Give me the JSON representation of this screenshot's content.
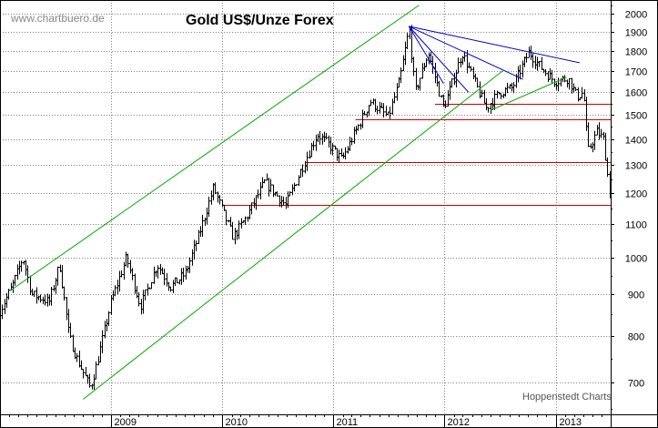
{
  "watermark": "www.chartbuero.de",
  "credit": "Hoppenstedt Charts",
  "chart_data": {
    "type": "candlestick",
    "title": "Gold US$/Unze Forex",
    "y_scale": "log",
    "ylim": [
      640,
      2080
    ],
    "y_ticks": [
      700,
      800,
      900,
      1000,
      1100,
      1200,
      1300,
      1400,
      1500,
      1600,
      1700,
      1800,
      1900,
      2000
    ],
    "x_range": [
      "2008-01-02",
      "2013-06-30"
    ],
    "x_ticks": [
      {
        "date": "2009-01-01",
        "label": "2009"
      },
      {
        "date": "2010-01-01",
        "label": "2010"
      },
      {
        "date": "2011-01-01",
        "label": "2011"
      },
      {
        "date": "2012-01-01",
        "label": "2012"
      },
      {
        "date": "2013-01-01",
        "label": "2013"
      }
    ],
    "grid": true,
    "colors": {
      "price": "#000000",
      "grid": "#808080",
      "horizontal_levels": "#cc0000",
      "channel": "#00aa00",
      "fan_lines": "#0000cc"
    },
    "price_path": [
      [
        "2008-01-02",
        860
      ],
      [
        "2008-02-10",
        920
      ],
      [
        "2008-03-17",
        1000
      ],
      [
        "2008-04-15",
        900
      ],
      [
        "2008-05-20",
        890
      ],
      [
        "2008-06-10",
        880
      ],
      [
        "2008-07-15",
        980
      ],
      [
        "2008-08-15",
        800
      ],
      [
        "2008-09-10",
        750
      ],
      [
        "2008-10-24",
        690
      ],
      [
        "2008-11-15",
        740
      ],
      [
        "2008-12-31",
        880
      ],
      [
        "2009-02-20",
        1000
      ],
      [
        "2009-04-06",
        870
      ],
      [
        "2009-06-01",
        980
      ],
      [
        "2009-07-15",
        920
      ],
      [
        "2009-09-01",
        955
      ],
      [
        "2009-10-14",
        1060
      ],
      [
        "2009-12-03",
        1220
      ],
      [
        "2010-01-10",
        1120
      ],
      [
        "2010-02-05",
        1060
      ],
      [
        "2010-03-20",
        1120
      ],
      [
        "2010-05-20",
        1240
      ],
      [
        "2010-07-28",
        1160
      ],
      [
        "2010-10-01",
        1320
      ],
      [
        "2010-11-08",
        1420
      ],
      [
        "2010-12-15",
        1380
      ],
      [
        "2011-01-28",
        1320
      ],
      [
        "2011-03-10",
        1420
      ],
      [
        "2011-05-02",
        1560
      ],
      [
        "2011-06-30",
        1490
      ],
      [
        "2011-08-05",
        1650
      ],
      [
        "2011-09-06",
        1920
      ],
      [
        "2011-09-26",
        1600
      ],
      [
        "2011-11-08",
        1790
      ],
      [
        "2011-12-29",
        1530
      ],
      [
        "2012-02-28",
        1790
      ],
      [
        "2012-05-16",
        1530
      ],
      [
        "2012-06-30",
        1600
      ],
      [
        "2012-08-10",
        1620
      ],
      [
        "2012-10-04",
        1795
      ],
      [
        "2012-11-10",
        1720
      ],
      [
        "2012-12-28",
        1650
      ],
      [
        "2013-02-10",
        1665
      ],
      [
        "2013-03-10",
        1580
      ],
      [
        "2013-04-01",
        1600
      ],
      [
        "2013-04-15",
        1350
      ],
      [
        "2013-05-15",
        1430
      ],
      [
        "2013-06-06",
        1400
      ],
      [
        "2013-06-27",
        1190
      ],
      [
        "2013-06-30",
        1230
      ]
    ],
    "horizontal_levels": [
      {
        "y": 1550,
        "from": "2011-12-01",
        "to": "2013-06-30"
      },
      {
        "y": 1480,
        "from": "2011-03-15",
        "to": "2013-06-30"
      },
      {
        "y": 1310,
        "from": "2010-10-01",
        "to": "2013-06-30"
      },
      {
        "y": 1160,
        "from": "2010-01-01",
        "to": "2013-06-30"
      }
    ],
    "trend_lines": [
      {
        "color": "#00aa00",
        "from": [
          "2008-02-05",
          910
        ],
        "to": [
          "2011-10-10",
          2050
        ]
      },
      {
        "color": "#00aa00",
        "from": [
          "2008-10-01",
          668
        ],
        "to": [
          "2012-07-10",
          1700
        ]
      },
      {
        "color": "#00aa00",
        "from": [
          "2012-06-01",
          1520
        ],
        "to": [
          "2013-02-05",
          1670
        ]
      },
      {
        "color": "#0000cc",
        "from": [
          "2011-09-06",
          1930
        ],
        "to": [
          "2013-03-20",
          1740
        ]
      },
      {
        "color": "#0000cc",
        "from": [
          "2011-09-06",
          1930
        ],
        "to": [
          "2012-09-15",
          1660
        ]
      },
      {
        "color": "#0000cc",
        "from": [
          "2011-09-06",
          1930
        ],
        "to": [
          "2012-03-20",
          1600
        ]
      },
      {
        "color": "#0000cc",
        "from": [
          "2011-09-06",
          1930
        ],
        "to": [
          "2011-12-29",
          1640
        ]
      }
    ]
  }
}
